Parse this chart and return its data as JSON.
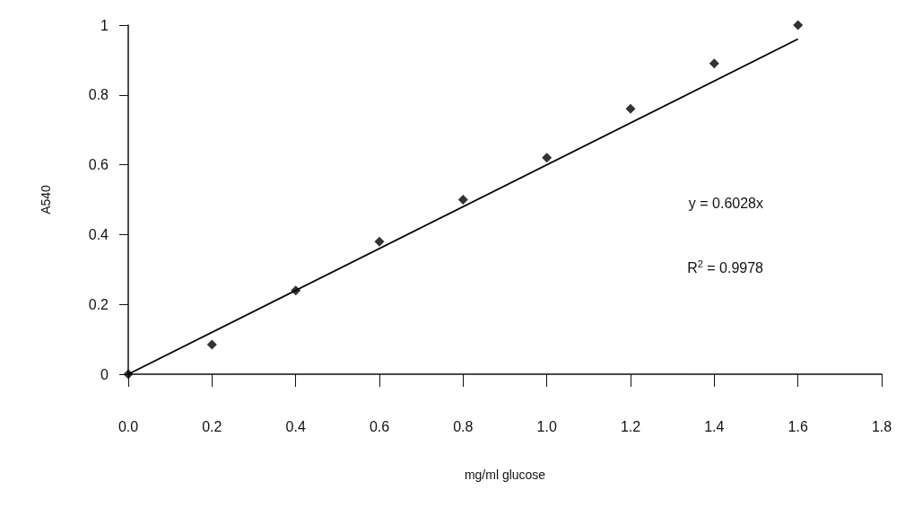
{
  "chart_data": {
    "type": "scatter",
    "xlabel": "mg/ml glucose",
    "ylabel": "A540",
    "series": [
      {
        "color": "#000000",
        "x": [
          0,
          0.2,
          0.4,
          0.6,
          0.8,
          1.0,
          1.2,
          1.4,
          1.6
        ],
        "values": [
          0,
          0.085,
          0.24,
          0.38,
          0.5,
          0.62,
          0.76,
          0.89,
          1.0
        ],
        "marker": "diamond"
      },
      {
        "type": "line",
        "color": "#000000",
        "x": [
          0,
          1.6
        ],
        "values": [
          0,
          0.96
        ],
        "marker": "none",
        "line_style": "solid"
      }
    ],
    "xlim": [
      0,
      1.8
    ],
    "xticks": [
      {
        "value": 0,
        "label": "0.0"
      },
      0.2,
      0.4,
      0.6,
      0.8,
      {
        "value": 1,
        "label": "1.0"
      },
      1.2,
      1.4,
      1.6,
      1.8
    ],
    "ylim": [
      0,
      1
    ],
    "yticks": [
      0,
      0.2,
      0.4,
      0.6,
      0.8,
      1
    ],
    "annotations": [
      "y = 0.6028x",
      "R$^{2}$ = 0.9978"
    ],
    "grid": false
  }
}
